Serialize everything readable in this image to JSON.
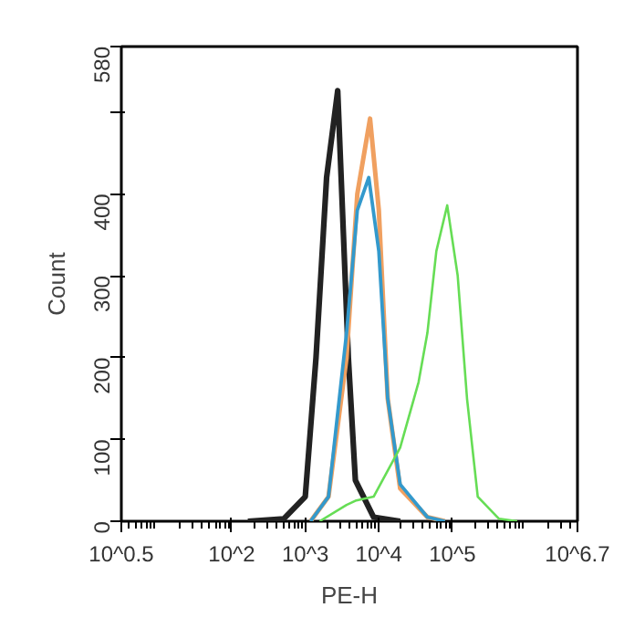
{
  "chart_data": {
    "type": "line",
    "xlabel": "PE-H",
    "ylabel": "Count",
    "log": "x",
    "xlim": [
      3.162,
      5011872
    ],
    "xticks": [
      {
        "value": 3.162,
        "label": "10^0.5"
      },
      {
        "value": 100,
        "label": "10^2"
      },
      {
        "value": 1000,
        "label": "10^3"
      },
      {
        "value": 10000,
        "label": "10^4"
      },
      {
        "value": 100000,
        "label": "10^5"
      },
      {
        "value": 5011872,
        "label": "10^6.7"
      }
    ],
    "ylim": [
      0,
      580
    ],
    "yticks": [
      0,
      100,
      200,
      300,
      400,
      {
        "value": 500,
        "label": null
      },
      580
    ],
    "grid": false,
    "marker": "none",
    "line_style": "solid",
    "series": [
      {
        "color": "#222222",
        "x": [
          166,
          510,
          1000,
          1400,
          1950,
          2760,
          3850,
          4800,
          8500,
          19500
        ],
        "values": [
          0,
          3,
          30,
          200,
          420,
          526,
          200,
          50,
          5,
          0
        ]
      },
      {
        "color": "#f0a060",
        "x": [
          1180,
          2070,
          3640,
          5100,
          7600,
          10000,
          13200,
          19500,
          45700,
          79000
        ],
        "values": [
          0,
          30,
          200,
          400,
          492,
          380,
          150,
          40,
          5,
          0
        ]
      },
      {
        "color": "#3399cc",
        "x": [
          1180,
          2070,
          3640,
          5100,
          7300,
          10000,
          13200,
          19500,
          45700,
          79000
        ],
        "values": [
          0,
          30,
          230,
          380,
          420,
          330,
          150,
          45,
          5,
          0
        ]
      },
      {
        "color": "#66dd55",
        "x": [
          1570,
          3640,
          4800,
          8500,
          19500,
          34700,
          45700,
          60500,
          85000,
          118000,
          158000,
          221000,
          430000,
          760000
        ],
        "values": [
          0,
          20,
          25,
          30,
          90,
          170,
          230,
          330,
          386,
          300,
          150,
          30,
          3,
          0
        ]
      }
    ]
  }
}
